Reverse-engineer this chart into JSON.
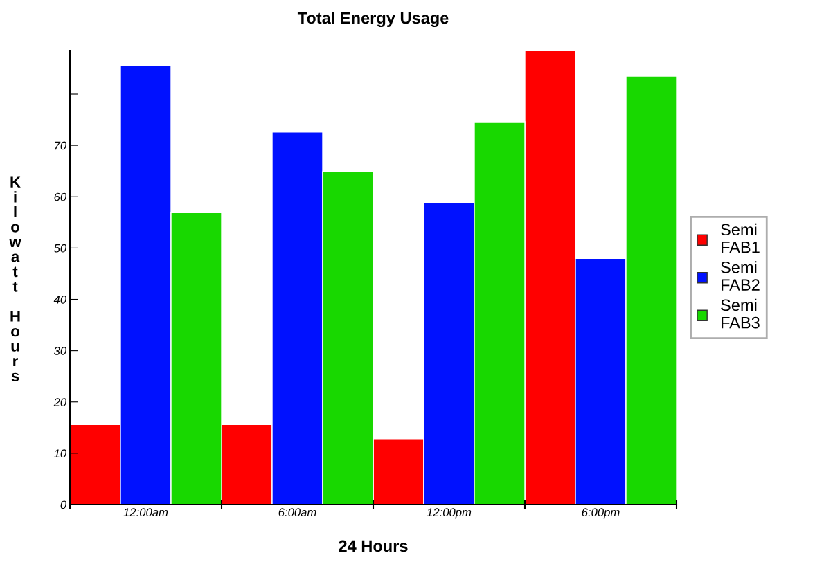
{
  "chart_data": {
    "type": "bar",
    "title": "Total Energy Usage",
    "xlabel": "24 Hours",
    "ylabel": "Kilowatt Hours",
    "categories": [
      "12:00am",
      "6:00am",
      "12:00pm",
      "6:00pm"
    ],
    "series": [
      {
        "name": "Semi FAB1",
        "color": "#ff0000",
        "values": [
          15.6,
          15.6,
          12.7,
          88.5
        ]
      },
      {
        "name": "Semi FAB2",
        "color": "#0011ff",
        "values": [
          85.5,
          72.6,
          58.9,
          48
        ]
      },
      {
        "name": "Semi FAB3",
        "color": "#18d800",
        "values": [
          56.9,
          64.9,
          74.6,
          83.5
        ]
      }
    ],
    "ylim": [
      0,
      88.5
    ],
    "yticks": [
      0,
      10,
      20,
      30,
      40,
      50,
      60,
      70,
      {
        "value": 80,
        "label": null
      }
    ],
    "grid": false,
    "legend": "right"
  }
}
